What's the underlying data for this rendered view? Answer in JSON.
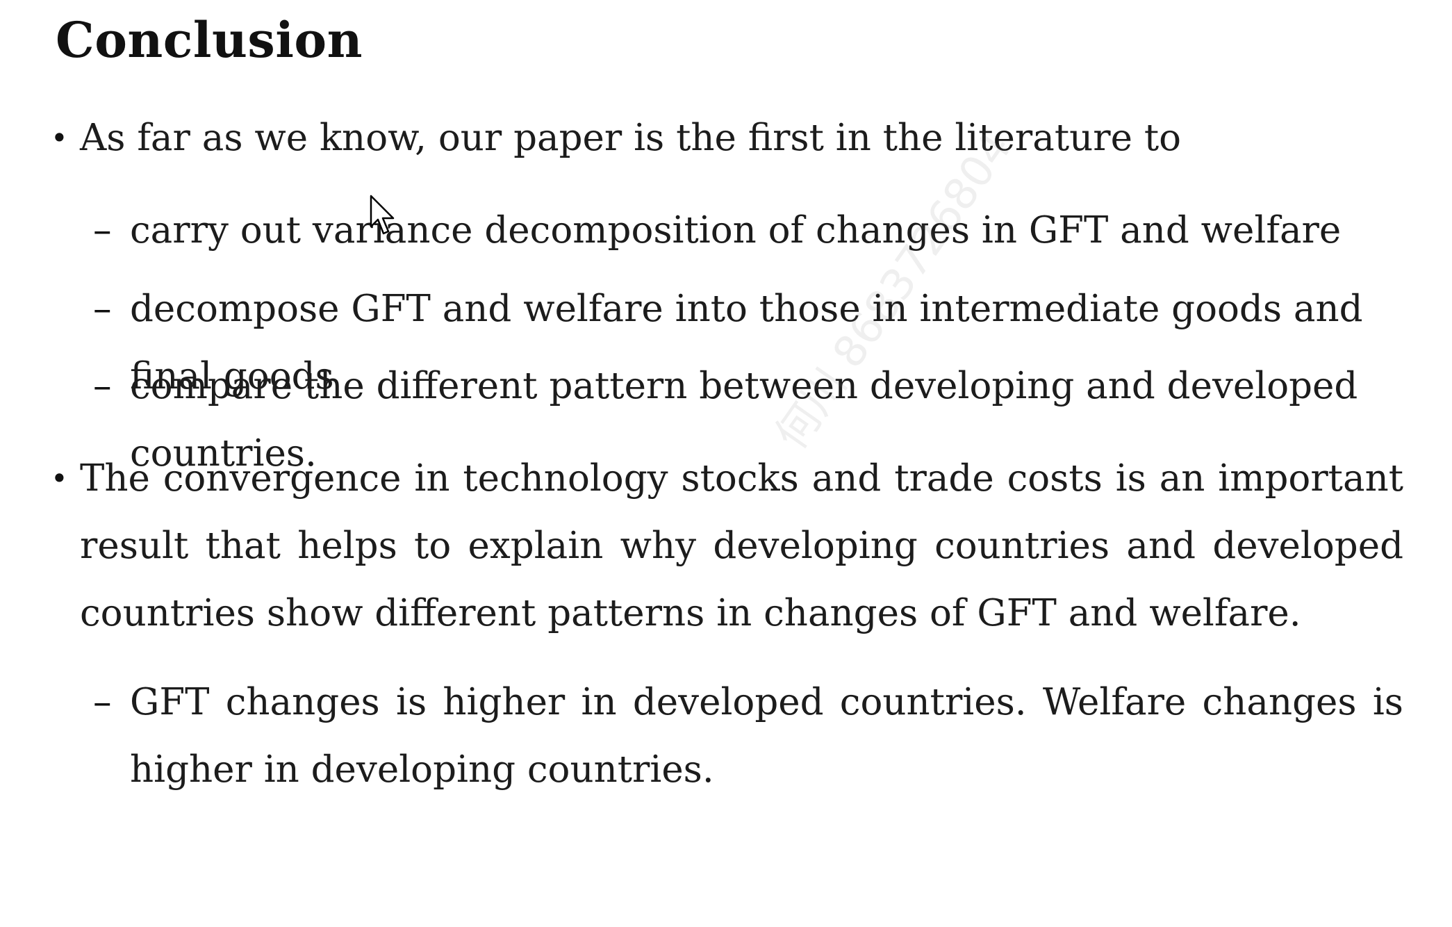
{
  "slide": {
    "title": "Conclusion",
    "bullet_marker": "•",
    "sub_marker": "–",
    "bullets": [
      {
        "text": "As far as we know, our paper is the first in the literature to",
        "subitems": [
          "carry out variance decomposition of changes in GFT and welfare",
          "decompose GFT and welfare into those in intermediate goods and final goods",
          "compare the different pattern between developing and developed countries."
        ]
      },
      {
        "text": "The convergence in technology stocks and trade costs is an important result that helps to explain why developing countries and developed countries show different patterns in changes of GFT and welfare.",
        "subitems": [
          "GFT changes is higher in developed countries.  Welfare changes is higher in developing countries."
        ]
      }
    ]
  },
  "watermark": "何川 8683726804",
  "icons": {
    "cursor": "mouse-pointer-icon"
  },
  "colors": {
    "background": "#ffffff",
    "text": "#1c1c1c"
  }
}
